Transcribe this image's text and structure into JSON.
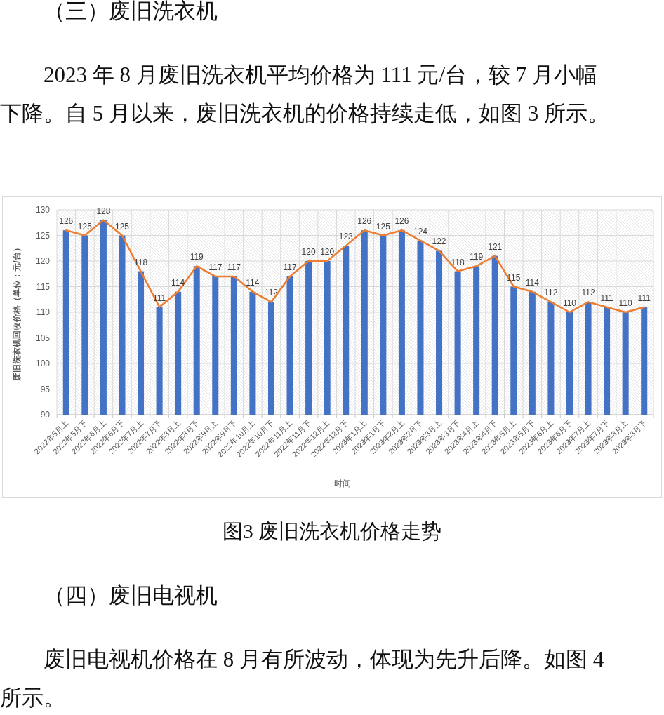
{
  "chart_data": {
    "type": "bar",
    "title": "图3 废旧洗衣机价格走势",
    "xlabel": "时间",
    "ylabel": "废旧洗衣机回收价格（单位：元/台）",
    "annotations": [
      "（三）废旧洗衣机",
      "2023 年 8 月废旧洗衣机平均价格为 111 元/台，较 7 月小幅下降。自 5 月以来，废旧洗衣机的价格持续走低，如图 3 所示。",
      "（四）废旧电视机",
      "废旧电视机价格在 8 月有所波动，体现为先升后降。如图 4 所示。"
    ],
    "categories": [
      "2022年5月上",
      "2022年5月下",
      "2022年6月上",
      "2022年6月下",
      "2022年7月上",
      "2022年7月下",
      "2022年8月上",
      "2022年8月下",
      "2022年9月上",
      "2022年9月下",
      "2022年10月上",
      "2022年10月下",
      "2022年11月上",
      "2022年11月下",
      "2022年12月上",
      "2022年12月下",
      "2023年1月上",
      "2023年1月下",
      "2023年2月上",
      "2023年2月下",
      "2023年3月上",
      "2023年3月下",
      "2023年4月上",
      "2023年4月下",
      "2023年5月上",
      "2023年5月下",
      "2023年6月上",
      "2023年6月下",
      "2023年7月上",
      "2023年7月下",
      "2023年8月上",
      "2023年8月下"
    ],
    "series": [
      {
        "color": "#4472c4",
        "values": [
          126,
          125,
          128,
          125,
          118,
          111,
          114,
          119,
          117,
          117,
          114,
          112,
          117,
          120,
          120,
          123,
          126,
          125,
          126,
          124,
          122,
          118,
          119,
          121,
          115,
          114,
          112,
          110,
          112,
          111,
          110,
          111
        ]
      },
      {
        "type": "line",
        "color": "#ed7d31",
        "values": [
          126,
          125,
          128,
          125,
          118,
          111,
          114,
          119,
          117,
          117,
          114,
          112,
          117,
          120,
          120,
          123,
          126,
          125,
          126,
          124,
          122,
          118,
          119,
          121,
          115,
          114,
          112,
          110,
          112,
          111,
          110,
          111
        ],
        "value_labels": [
          "126",
          "125",
          "128",
          "125",
          "118",
          "111",
          "114",
          "119",
          "117",
          "117",
          "114",
          "112",
          "117",
          "120",
          "120",
          "123",
          "126",
          "125",
          "126",
          "124",
          "122",
          "118",
          "119",
          "121",
          "115",
          "114",
          "112",
          "110",
          "112",
          "111",
          "110",
          "111"
        ]
      }
    ],
    "ylim": [
      90,
      130
    ],
    "yticks": [
      90,
      95,
      100,
      105,
      110,
      115,
      120,
      125,
      130
    ],
    "grid": true
  }
}
